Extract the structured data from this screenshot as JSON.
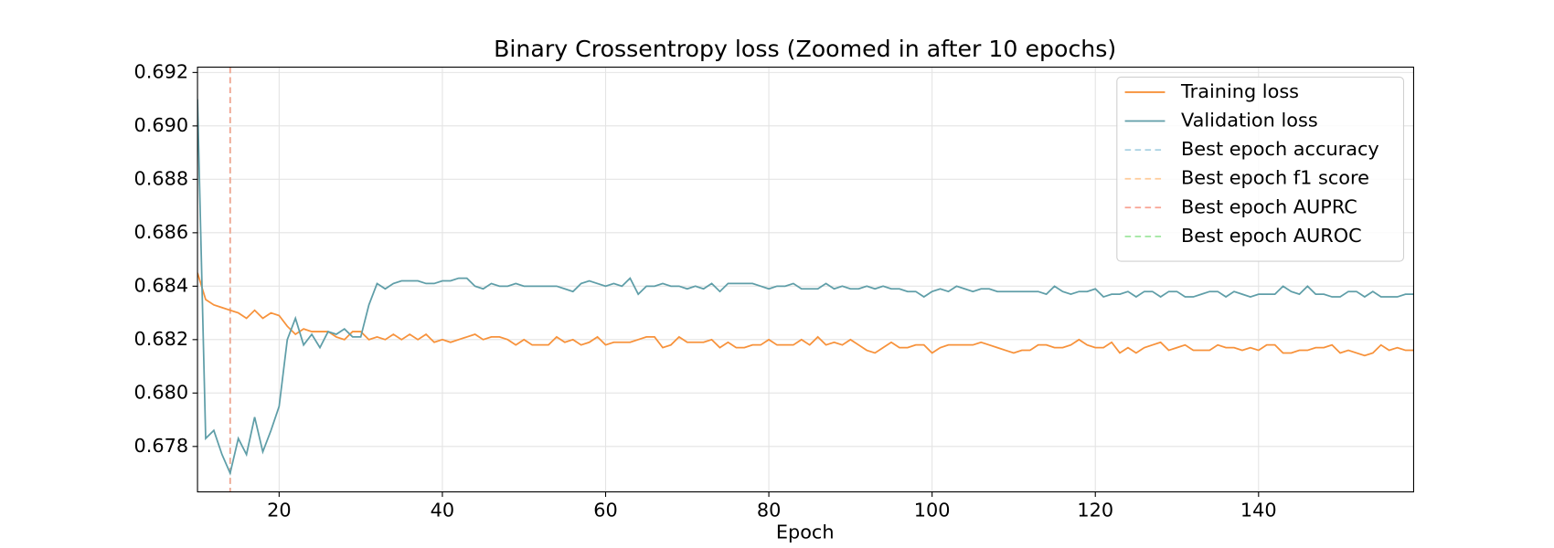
{
  "chart_data": {
    "type": "line",
    "title": "Binary Crossentropy loss (Zoomed in after 10 epochs)",
    "x_label": "Epoch",
    "x": [
      10,
      11,
      12,
      13,
      14,
      15,
      16,
      17,
      18,
      19,
      20,
      21,
      22,
      23,
      24,
      25,
      26,
      27,
      28,
      29,
      30,
      31,
      32,
      33,
      34,
      35,
      36,
      37,
      38,
      39,
      40,
      41,
      42,
      43,
      44,
      45,
      46,
      47,
      48,
      49,
      50,
      51,
      52,
      53,
      54,
      55,
      56,
      57,
      58,
      59,
      60,
      61,
      62,
      63,
      64,
      65,
      66,
      67,
      68,
      69,
      70,
      71,
      72,
      73,
      74,
      75,
      76,
      77,
      78,
      79,
      80,
      81,
      82,
      83,
      84,
      85,
      86,
      87,
      88,
      89,
      90,
      91,
      92,
      93,
      94,
      95,
      96,
      97,
      98,
      99,
      100,
      101,
      102,
      103,
      104,
      105,
      106,
      107,
      108,
      109,
      110,
      111,
      112,
      113,
      114,
      115,
      116,
      117,
      118,
      119,
      120,
      121,
      122,
      123,
      124,
      125,
      126,
      127,
      128,
      129,
      130,
      131,
      132,
      133,
      134,
      135,
      136,
      137,
      138,
      139,
      140,
      141,
      142,
      143,
      144,
      145,
      146,
      147,
      148,
      149,
      150,
      151,
      152,
      153,
      154,
      155,
      156,
      157,
      158,
      159
    ],
    "series": [
      {
        "name": "Training loss",
        "color": "#f7923b",
        "values": [
          0.6845,
          0.6835,
          0.6833,
          0.6832,
          0.6831,
          0.683,
          0.6828,
          0.6831,
          0.6828,
          0.683,
          0.6829,
          0.6825,
          0.6822,
          0.6824,
          0.6823,
          0.6823,
          0.6823,
          0.6821,
          0.682,
          0.6823,
          0.6823,
          0.682,
          0.6821,
          0.682,
          0.6822,
          0.682,
          0.6822,
          0.682,
          0.6822,
          0.6819,
          0.682,
          0.6819,
          0.682,
          0.6821,
          0.6822,
          0.682,
          0.6821,
          0.6821,
          0.682,
          0.6818,
          0.682,
          0.6818,
          0.6818,
          0.6818,
          0.6821,
          0.6819,
          0.682,
          0.6818,
          0.6819,
          0.6821,
          0.6818,
          0.6819,
          0.6819,
          0.6819,
          0.682,
          0.6821,
          0.6821,
          0.6817,
          0.6818,
          0.6821,
          0.6819,
          0.6819,
          0.6819,
          0.682,
          0.6817,
          0.6819,
          0.6817,
          0.6817,
          0.6818,
          0.6818,
          0.682,
          0.6818,
          0.6818,
          0.6818,
          0.682,
          0.6818,
          0.6821,
          0.6818,
          0.6819,
          0.6818,
          0.682,
          0.6818,
          0.6816,
          0.6815,
          0.6817,
          0.6819,
          0.6817,
          0.6817,
          0.6818,
          0.6818,
          0.6815,
          0.6817,
          0.6818,
          0.6818,
          0.6818,
          0.6818,
          0.6819,
          0.6818,
          0.6817,
          0.6816,
          0.6815,
          0.6816,
          0.6816,
          0.6818,
          0.6818,
          0.6817,
          0.6817,
          0.6818,
          0.682,
          0.6818,
          0.6817,
          0.6817,
          0.6819,
          0.6815,
          0.6817,
          0.6815,
          0.6817,
          0.6818,
          0.6819,
          0.6816,
          0.6817,
          0.6818,
          0.6816,
          0.6816,
          0.6816,
          0.6818,
          0.6817,
          0.6817,
          0.6816,
          0.6817,
          0.6816,
          0.6818,
          0.6818,
          0.6815,
          0.6815,
          0.6816,
          0.6816,
          0.6817,
          0.6817,
          0.6818,
          0.6815,
          0.6816,
          0.6815,
          0.6814,
          0.6815,
          0.6818,
          0.6816,
          0.6817,
          0.6816,
          0.6816
        ]
      },
      {
        "name": "Validation loss",
        "color": "#5f9ea8",
        "values": [
          0.691,
          0.6783,
          0.6786,
          0.6777,
          0.677,
          0.6783,
          0.6777,
          0.6791,
          0.6778,
          0.6786,
          0.6795,
          0.682,
          0.6828,
          0.6818,
          0.6822,
          0.6817,
          0.6823,
          0.6822,
          0.6824,
          0.6821,
          0.6821,
          0.6833,
          0.6841,
          0.6839,
          0.6841,
          0.6842,
          0.6842,
          0.6842,
          0.6841,
          0.6841,
          0.6842,
          0.6842,
          0.6843,
          0.6843,
          0.684,
          0.6839,
          0.6841,
          0.684,
          0.684,
          0.6841,
          0.684,
          0.684,
          0.684,
          0.684,
          0.684,
          0.6839,
          0.6838,
          0.6841,
          0.6842,
          0.6841,
          0.684,
          0.6841,
          0.684,
          0.6843,
          0.6837,
          0.684,
          0.684,
          0.6841,
          0.684,
          0.684,
          0.6839,
          0.684,
          0.6839,
          0.6841,
          0.6838,
          0.6841,
          0.6841,
          0.6841,
          0.6841,
          0.684,
          0.6839,
          0.684,
          0.684,
          0.6841,
          0.6839,
          0.6839,
          0.6839,
          0.6841,
          0.6839,
          0.684,
          0.6839,
          0.6839,
          0.684,
          0.6839,
          0.684,
          0.6839,
          0.6839,
          0.6838,
          0.6838,
          0.6836,
          0.6838,
          0.6839,
          0.6838,
          0.684,
          0.6839,
          0.6838,
          0.6839,
          0.6839,
          0.6838,
          0.6838,
          0.6838,
          0.6838,
          0.6838,
          0.6838,
          0.6837,
          0.684,
          0.6838,
          0.6837,
          0.6838,
          0.6838,
          0.6839,
          0.6836,
          0.6837,
          0.6837,
          0.6838,
          0.6836,
          0.6838,
          0.6838,
          0.6836,
          0.6838,
          0.6838,
          0.6836,
          0.6836,
          0.6837,
          0.6838,
          0.6838,
          0.6836,
          0.6838,
          0.6837,
          0.6836,
          0.6837,
          0.6837,
          0.6837,
          0.684,
          0.6838,
          0.6837,
          0.684,
          0.6837,
          0.6837,
          0.6836,
          0.6836,
          0.6838,
          0.6838,
          0.6836,
          0.6838,
          0.6836,
          0.6836,
          0.6836,
          0.6837,
          0.6837
        ]
      }
    ],
    "vlines": [
      {
        "name": "Best epoch accuracy",
        "color": "#a9d2e3",
        "x": 14
      },
      {
        "name": "Best epoch f1 score",
        "color": "#ffcc9a",
        "x": 14
      },
      {
        "name": "Best epoch AUROC",
        "color": "#9fe69f",
        "x": 14
      },
      {
        "name": "Best epoch AUPRC",
        "color": "#f8a292",
        "x": 14
      }
    ],
    "legend_order": [
      0,
      1,
      3,
      2
    ],
    "xlim": [
      10,
      159
    ],
    "ylim": [
      0.6763,
      0.6922
    ],
    "xticks": [
      20,
      40,
      60,
      80,
      100,
      120,
      140
    ],
    "yticks": [
      0.678,
      0.68,
      0.682,
      0.684,
      0.686,
      0.688,
      0.69,
      0.692
    ],
    "grid": true,
    "legend": "upper right"
  }
}
